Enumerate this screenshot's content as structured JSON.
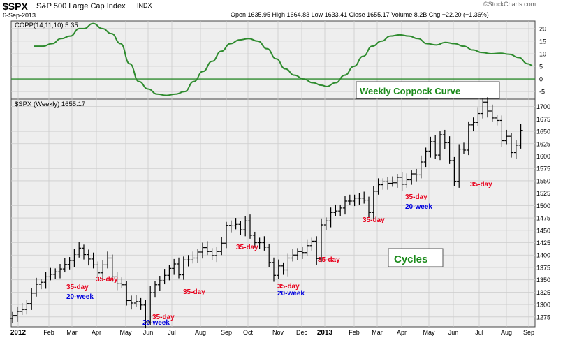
{
  "header": {
    "symbol": "$SPX",
    "name": "S&P 500 Large Cap Index",
    "exchange": "INDX",
    "date": "6-Sep-2013",
    "ohlc": "Open 1635.95  High 1664.83  Low 1633.41  Close 1655.17  Volume 8.2B  Chg +22.20 (+1.36%)",
    "brand": "©StockCharts.com"
  },
  "colors": {
    "coppock": "#2e8b2e",
    "red_label": "#e8001c",
    "blue_label": "#0000dd",
    "panel_bg": "#eeeeee",
    "grid": "#cccccc",
    "bars": "#000000"
  },
  "chart_data": [
    {
      "type": "line",
      "indicator_label": "COPP(14,11,10) 5.35",
      "box_label": "Weekly Coppock Curve",
      "x_unit": "week index (0 = first week of 2012)",
      "y_ticks": [
        20,
        15,
        10,
        5,
        0,
        -5
      ],
      "ylim": [
        -8,
        23
      ],
      "zero_line": true,
      "grid": true,
      "series": [
        {
          "values": [
            [
              4,
              13
            ],
            [
              6,
              13
            ],
            [
              8,
              14
            ],
            [
              10,
              16
            ],
            [
              12,
              17
            ],
            [
              14,
              20
            ],
            [
              15,
              20
            ],
            [
              17,
              22
            ],
            [
              19,
              20
            ],
            [
              21,
              18
            ],
            [
              23,
              14
            ],
            [
              25,
              6
            ],
            [
              27,
              -1
            ],
            [
              29,
              -4
            ],
            [
              31,
              -6
            ],
            [
              33,
              -6.5
            ],
            [
              35,
              -6
            ],
            [
              37,
              -5
            ],
            [
              39,
              -1
            ],
            [
              41,
              3
            ],
            [
              43,
              7
            ],
            [
              45,
              11
            ],
            [
              47,
              14
            ],
            [
              49,
              15.5
            ],
            [
              51,
              16
            ],
            [
              53,
              15
            ],
            [
              55,
              12
            ],
            [
              57,
              8
            ],
            [
              59,
              4
            ],
            [
              61,
              1.5
            ],
            [
              63,
              0
            ],
            [
              65,
              -1.5
            ],
            [
              67,
              -2.5
            ],
            [
              68,
              -3
            ],
            [
              70,
              -1.5
            ],
            [
              72,
              1.5
            ],
            [
              74,
              5
            ],
            [
              76,
              9
            ],
            [
              78,
              13
            ],
            [
              80,
              15
            ],
            [
              82,
              17
            ],
            [
              84,
              17.5
            ],
            [
              86,
              17
            ],
            [
              88,
              16
            ],
            [
              90,
              14
            ],
            [
              92,
              13.5
            ],
            [
              94,
              14.5
            ],
            [
              96,
              14
            ],
            [
              98,
              13
            ],
            [
              100,
              11.5
            ],
            [
              102,
              10.5
            ],
            [
              104,
              10
            ],
            [
              106,
              10.2
            ],
            [
              108,
              9.8
            ],
            [
              110,
              8.5
            ],
            [
              112,
              6
            ],
            [
              113,
              5.35
            ]
          ]
        }
      ]
    },
    {
      "type": "bar",
      "indicator_label": "$SPX (Weekly) 1655.17",
      "annotation_box": "Cycles",
      "x_unit": "week index (0 = first week of 2012)",
      "y_ticks": [
        1700,
        1675,
        1650,
        1625,
        1600,
        1575,
        1550,
        1525,
        1500,
        1475,
        1450,
        1425,
        1400,
        1375,
        1350,
        1325,
        1300,
        1275
      ],
      "ylim": [
        1255,
        1715
      ],
      "grid": true,
      "x_tick_labels": [
        "2012",
        "Feb",
        "Mar",
        "Apr",
        "May",
        "Jun",
        "Jul",
        "Aug",
        "Sep",
        "Oct",
        "Nov",
        "Dec",
        "2013",
        "Feb",
        "Mar",
        "Apr",
        "May",
        "Jun",
        "Jul",
        "Aug",
        "Sep"
      ],
      "close_values": [
        1278,
        1294,
        1302,
        1315,
        1343,
        1352,
        1351,
        1362,
        1370,
        1365,
        1370,
        1384,
        1394,
        1405,
        1410,
        1405,
        1397,
        1369,
        1378,
        1395,
        1403,
        1378,
        1368,
        1353,
        1330,
        1318,
        1320,
        1311,
        1297,
        1330,
        1344,
        1363,
        1356,
        1374,
        1378,
        1360,
        1386,
        1391,
        1402,
        1405,
        1418,
        1420,
        1406,
        1411,
        1438,
        1448,
        1461,
        1465,
        1455,
        1464,
        1446,
        1431,
        1441,
        1431,
        1390,
        1360,
        1380,
        1384,
        1407,
        1418,
        1418,
        1429,
        1434,
        1432,
        1410,
        1460,
        1470,
        1484,
        1494,
        1505,
        1515,
        1518,
        1519,
        1526,
        1517,
        1500,
        1532,
        1551,
        1555,
        1557,
        1561,
        1564,
        1555,
        1582,
        1588,
        1571,
        1614,
        1634,
        1647,
        1633,
        1657,
        1640,
        1611,
        1587,
        1620,
        1633,
        1678,
        1680,
        1693,
        1708,
        1693,
        1692,
        1684,
        1656,
        1663,
        1640,
        1639,
        1655
      ],
      "y_visual_offsets": [
        0,
        -8,
        -12,
        -13,
        -20,
        -11,
        -6,
        -6,
        -9,
        1,
        2,
        -3,
        -5,
        -3,
        4,
        -4,
        -5,
        11,
        -14,
        -15,
        -9,
        -22,
        -26,
        -13,
        -22,
        -15,
        -14,
        -12,
        -32,
        -6,
        -4,
        -15,
        3,
        -1,
        4,
        0,
        4,
        -1,
        -8,
        1,
        -3,
        -13,
        -7,
        -4,
        -14,
        12,
        -2,
        -3,
        -4,
        5,
        -6,
        -6,
        -16,
        -15,
        -5,
        -1,
        -2,
        -14,
        -13,
        -18,
        -11,
        -24,
        -15,
        -4,
        -17,
        1,
        -1,
        2,
        -5,
        -10,
        -6,
        -9,
        -4,
        -11,
        -6,
        -14,
        -3,
        -9,
        -7,
        -12,
        -15,
        -7,
        -12,
        -30,
        -24,
        -9,
        -26,
        -24,
        -18,
        -31,
        -14,
        -13,
        -20,
        -38,
        -6,
        -21,
        -15,
        -12,
        -7,
        1,
        -2,
        -15,
        -12,
        -25,
        -23,
        -33,
        -17,
        -3
      ]
    }
  ],
  "cycle_labels": [
    {
      "text": "35-day",
      "color": "red"
    },
    {
      "text": "20-week",
      "color": "blue"
    },
    {
      "text": "35-day",
      "color": "red"
    },
    {
      "text": "35-day",
      "color": "red"
    },
    {
      "text": "20-week",
      "color": "blue"
    },
    {
      "text": "35-day",
      "color": "red"
    },
    {
      "text": "35-day",
      "color": "red"
    },
    {
      "text": "35-day",
      "color": "red"
    },
    {
      "text": "20-week",
      "color": "blue"
    },
    {
      "text": "35-day",
      "color": "red"
    },
    {
      "text": "35-day",
      "color": "red"
    },
    {
      "text": "35-day",
      "color": "red"
    },
    {
      "text": "20-week",
      "color": "blue"
    },
    {
      "text": "35-day",
      "color": "red"
    }
  ]
}
